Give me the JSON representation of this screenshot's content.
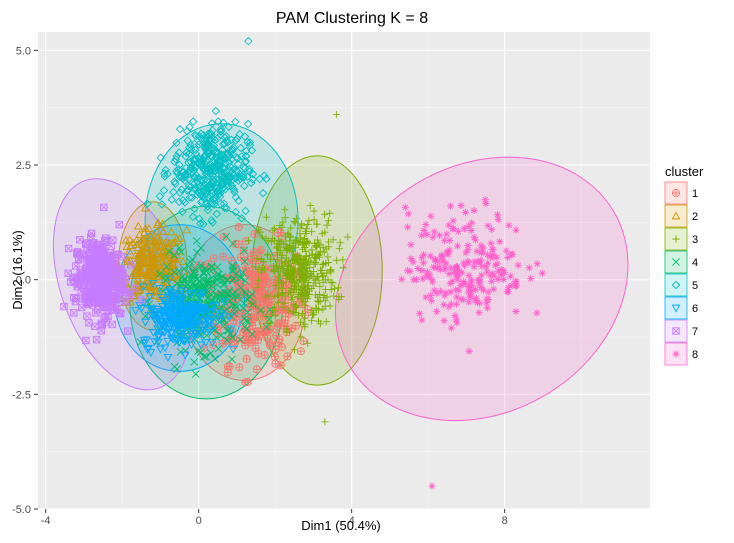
{
  "chart_data": {
    "type": "scatter",
    "title": "PAM Clustering K = 8",
    "xlabel": "Dim1 (50.4%)",
    "ylabel": "Dim2 (16.1%)",
    "xlim": [
      -4.2,
      11.8
    ],
    "ylim": [
      -5.0,
      5.4
    ],
    "x_ticks": [
      -4,
      0,
      4,
      8
    ],
    "y_ticks": [
      -5.0,
      -2.5,
      0.0,
      2.5,
      5.0
    ],
    "x_tick_labels": [
      "-4",
      "0",
      "4",
      "8"
    ],
    "y_tick_labels": [
      "-5.0",
      "-2.5",
      "0.0",
      "2.5",
      "5.0"
    ],
    "grid": true,
    "legend": {
      "title": "cluster",
      "position": "right",
      "entries": [
        "1",
        "2",
        "3",
        "4",
        "5",
        "6",
        "7",
        "8"
      ]
    },
    "series": [
      {
        "name": "1",
        "color": "#F8766D",
        "shape": "circle-plus",
        "center": [
          1.5,
          -0.5
        ],
        "spread": [
          1.3,
          1.2
        ],
        "count": 300,
        "ellipse": {
          "cx": 1.2,
          "cy": -0.5,
          "rx": 1.6,
          "ry": 1.7,
          "angle": 0
        }
      },
      {
        "name": "2",
        "color": "#CD9600",
        "shape": "triangle",
        "center": [
          -1.2,
          0.3
        ],
        "spread": [
          0.8,
          0.7
        ],
        "count": 260,
        "ellipse": {
          "cx": -1.2,
          "cy": 0.3,
          "rx": 0.9,
          "ry": 1.4,
          "angle": 0
        }
      },
      {
        "name": "3",
        "color": "#7CAE00",
        "shape": "plus",
        "center": [
          2.6,
          0.2
        ],
        "spread": [
          0.9,
          1.1
        ],
        "count": 420,
        "ellipse": {
          "cx": 3.1,
          "cy": 0.2,
          "rx": 1.7,
          "ry": 2.5,
          "angle": 0
        }
      },
      {
        "name": "4",
        "color": "#00BE67",
        "shape": "cross",
        "center": [
          0.2,
          -0.5
        ],
        "spread": [
          1.1,
          0.9
        ],
        "count": 320,
        "ellipse": {
          "cx": 0.2,
          "cy": -0.5,
          "rx": 2.0,
          "ry": 2.1,
          "angle": 0
        }
      },
      {
        "name": "5",
        "color": "#00BFC4",
        "shape": "diamond",
        "center": [
          0.3,
          2.4
        ],
        "spread": [
          0.9,
          0.9
        ],
        "count": 380,
        "ellipse": {
          "cx": 0.6,
          "cy": 1.3,
          "rx": 2.0,
          "ry": 2.1,
          "angle": 0
        }
      },
      {
        "name": "6",
        "color": "#00A9FF",
        "shape": "triangle-down",
        "center": [
          -0.5,
          -0.8
        ],
        "spread": [
          0.9,
          0.6
        ],
        "count": 260,
        "ellipse": {
          "cx": -0.5,
          "cy": -0.4,
          "rx": 1.7,
          "ry": 1.6,
          "angle": 0
        }
      },
      {
        "name": "7",
        "color": "#C77CFF",
        "shape": "square-x",
        "center": [
          -2.6,
          0.0
        ],
        "spread": [
          0.6,
          0.8
        ],
        "count": 360,
        "ellipse": {
          "cx": -2.0,
          "cy": -0.1,
          "rx": 1.6,
          "ry": 2.4,
          "angle": -20
        }
      },
      {
        "name": "8",
        "color": "#FF61CC",
        "shape": "asterisk",
        "center": [
          7.0,
          0.3
        ],
        "spread": [
          1.4,
          1.1
        ],
        "count": 220,
        "ellipse": {
          "cx": 7.4,
          "cy": -0.2,
          "rx": 4.0,
          "ry": 2.7,
          "angle": -30
        }
      }
    ],
    "outliers": [
      {
        "series": "5",
        "x": 1.3,
        "y": 5.2
      },
      {
        "series": "8",
        "x": 6.1,
        "y": -4.5
      },
      {
        "series": "3",
        "x": 3.3,
        "y": -3.1
      },
      {
        "series": "3",
        "x": 3.6,
        "y": 3.6
      }
    ]
  }
}
